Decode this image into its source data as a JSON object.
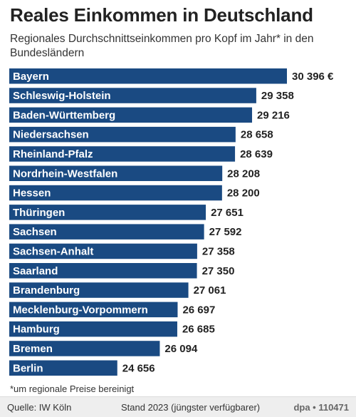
{
  "header": {
    "title": "Reales Einkommen in Deutschland",
    "subtitle": "Regionales Durchschnittseinkommen pro Kopf im Jahr* in den Bundesländern"
  },
  "colors": {
    "bar": "#1a4a82",
    "text": "#222222"
  },
  "chart_data": {
    "type": "bar",
    "orientation": "horizontal",
    "title": "Reales Einkommen in Deutschland",
    "subtitle": "Regionales Durchschnittseinkommen pro Kopf im Jahr* in den Bundesländern",
    "categories": [
      "Bayern",
      "Schleswig-Holstein",
      "Baden-Württemberg",
      "Niedersachsen",
      "Rheinland-Pfalz",
      "Nordrhein-Westfalen",
      "Hessen",
      "Thüringen",
      "Sachsen",
      "Sachsen-Anhalt",
      "Saarland",
      "Brandenburg",
      "Mecklenburg-Vorpommern",
      "Hamburg",
      "Bremen",
      "Berlin"
    ],
    "values": [
      30396,
      29358,
      29216,
      28658,
      28639,
      28208,
      28200,
      27651,
      27592,
      27358,
      27350,
      27061,
      26697,
      26685,
      26094,
      24656
    ],
    "value_labels": [
      "30 396 €",
      "29 358",
      "29 216",
      "28 658",
      "28 639",
      "28 208",
      "28 200",
      "27 651",
      "27 592",
      "27 358",
      "27 350",
      "27 061",
      "26 697",
      "26 685",
      "26 094",
      "24 656"
    ],
    "unit": "€",
    "grid": false,
    "legend": "none"
  },
  "footnote": "*um regionale Preise bereinigt",
  "footer": {
    "source": "Quelle: IW Köln",
    "stand": "Stand 2023 (jüngster verfügbarer)",
    "credit": "dpa • 110471"
  }
}
